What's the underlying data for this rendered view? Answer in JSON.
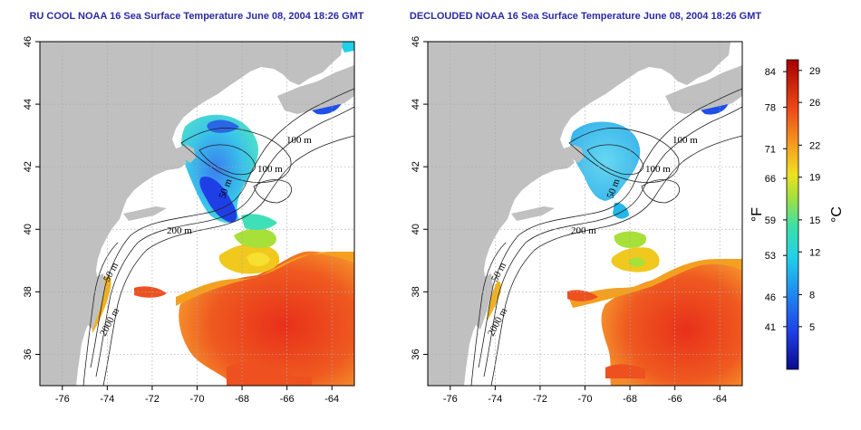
{
  "panels": [
    {
      "title": "RU COOL NOAA 16 Sea Surface Temperature June 08, 2004 18:26 GMT",
      "contour_labels": [
        "100 m",
        "100 m",
        "50 m",
        "200 m",
        "50 m",
        "2000 m"
      ]
    },
    {
      "title": "DECLOUDED NOAA 16 Sea Surface Temperature June 08, 2004 18:26 GMT",
      "contour_labels": [
        "100 m",
        "100 m",
        "50 m",
        "200 m",
        "50 m",
        "2000 m"
      ]
    }
  ],
  "axes": {
    "lon_ticks": [
      "-76",
      "-74",
      "-72",
      "-70",
      "-68",
      "-66",
      "-64"
    ],
    "lat_ticks": [
      "36",
      "38",
      "40",
      "42",
      "44",
      "46"
    ],
    "lon_range": [
      -77,
      -63
    ],
    "lat_range": [
      35,
      46
    ],
    "grid": "dotted"
  },
  "colorbar": {
    "fahrenheit_ticks": [
      "84",
      "78",
      "71",
      "66",
      "59",
      "53",
      "46",
      "41"
    ],
    "celsius_ticks": [
      "29",
      "26",
      "22",
      "19",
      "15",
      "12",
      "8",
      "5"
    ],
    "fahrenheit_label": "°F",
    "celsius_label": "°C",
    "celsius_range": [
      1,
      30
    ]
  },
  "colors": {
    "land": "#c0c0c0",
    "ocean_nodata": "#ffffff",
    "title": "#2a2aa6"
  }
}
